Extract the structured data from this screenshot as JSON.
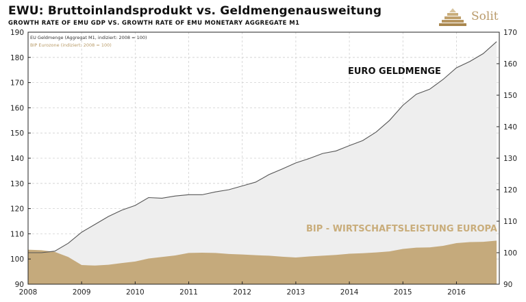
{
  "header": {
    "title": "EWU: Bruttoinlandsprodukt vs. Geldmengenausweitung",
    "subtitle": "GROWTH RATE OF EMU GDP VS. GROWTH RATE OF EMU MONETARY AGGREGATE M1",
    "logo_text": "Solit"
  },
  "colors": {
    "m1_line": "#555555",
    "m1_fill": "#eeeeee",
    "gdp_fill": "#c5aa7c",
    "grid": "#cfcfcf",
    "bip_text": "#c9ad7b"
  },
  "chart_data": {
    "type": "area",
    "x_range": [
      2008.0,
      2016.8
    ],
    "x_ticks": [
      "2008",
      "2009",
      "2010",
      "2011",
      "2012",
      "2013",
      "2014",
      "2015",
      "2016"
    ],
    "left_axis": {
      "range": [
        90,
        190
      ],
      "ticks": [
        "90",
        "100",
        "110",
        "120",
        "130",
        "140",
        "150",
        "160",
        "170",
        "180",
        "190"
      ]
    },
    "right_axis": {
      "range": [
        90,
        170
      ],
      "ticks": [
        "90",
        "100",
        "110",
        "120",
        "130",
        "140",
        "150",
        "160",
        "170"
      ]
    },
    "grid": true,
    "legend_position": "top-left",
    "legend": [
      "EU Geldmenge (Aggregat M1, indiziert: 2008 = 100)",
      "BIP Eurozone (indiziert: 2008 = 100)"
    ],
    "annotations": {
      "m1": "EURO GELDMENGE",
      "gdp": "BIP - WIRTSCHAFTSLEISTUNG EUROPA"
    },
    "series": [
      {
        "name": "EU Geldmenge (Aggregat M1, indiziert: 2008 = 100)",
        "axis": "right",
        "x": [
          2008.0,
          2008.25,
          2008.5,
          2008.75,
          2009.0,
          2009.25,
          2009.5,
          2009.75,
          2010.0,
          2010.25,
          2010.5,
          2010.75,
          2011.0,
          2011.25,
          2011.5,
          2011.75,
          2012.0,
          2012.25,
          2012.5,
          2012.75,
          2013.0,
          2013.25,
          2013.5,
          2013.75,
          2014.0,
          2014.25,
          2014.5,
          2014.75,
          2015.0,
          2015.25,
          2015.5,
          2015.75,
          2016.0,
          2016.25,
          2016.5,
          2016.75
        ],
        "values": [
          100.0,
          100.0,
          100.5,
          103.0,
          106.5,
          109.0,
          111.5,
          113.5,
          115.0,
          117.5,
          117.3,
          118.0,
          118.4,
          118.4,
          119.3,
          120.0,
          121.2,
          122.4,
          124.8,
          126.6,
          128.5,
          129.9,
          131.5,
          132.3,
          134.0,
          135.6,
          138.3,
          142.0,
          146.8,
          150.3,
          151.9,
          155.0,
          158.7,
          160.7,
          163.2,
          167.0
        ]
      },
      {
        "name": "BIP Eurozone (indiziert: 2008 = 100)",
        "axis": "left",
        "x": [
          2008.0,
          2008.25,
          2008.5,
          2008.75,
          2009.0,
          2009.25,
          2009.5,
          2009.75,
          2010.0,
          2010.25,
          2010.5,
          2010.75,
          2011.0,
          2011.25,
          2011.5,
          2011.75,
          2012.0,
          2012.25,
          2012.5,
          2012.75,
          2013.0,
          2013.25,
          2013.5,
          2013.75,
          2014.0,
          2014.25,
          2014.5,
          2014.75,
          2015.0,
          2015.25,
          2015.5,
          2015.75,
          2016.0,
          2016.25,
          2016.5,
          2016.75
        ],
        "values": [
          103.7,
          103.5,
          102.8,
          100.8,
          97.6,
          97.4,
          97.7,
          98.4,
          99.0,
          100.2,
          100.8,
          101.4,
          102.4,
          102.5,
          102.4,
          102.0,
          101.8,
          101.5,
          101.3,
          100.9,
          100.6,
          101.0,
          101.3,
          101.6,
          102.1,
          102.3,
          102.6,
          103.0,
          104.0,
          104.5,
          104.6,
          105.2,
          106.3,
          106.7,
          106.8,
          107.3
        ]
      }
    ]
  }
}
